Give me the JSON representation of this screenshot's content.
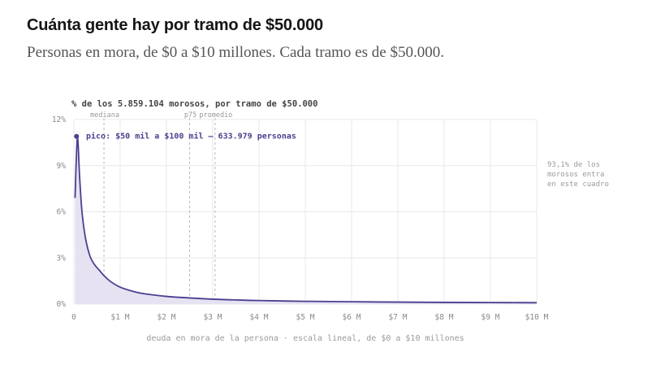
{
  "header": {
    "title": "Cuánta gente hay por tramo de $50.000",
    "subtitle": "Personas en mora, de $0 a $10 millones. Cada tramo es de $50.000."
  },
  "chart_data": {
    "type": "area",
    "title": "% de los 5.859.104 morosos, por tramo de $50.000",
    "xlabel": "deuda en mora de la persona · escala lineal, de $0 a $10 millones",
    "ylabel": "",
    "xlim": [
      0,
      10
    ],
    "ylim": [
      0,
      12
    ],
    "x_ticks": [
      0,
      1,
      2,
      3,
      4,
      5,
      6,
      7,
      8,
      9,
      10
    ],
    "x_tick_labels": [
      "0",
      "$1 M",
      "$2 M",
      "$3 M",
      "$4 M",
      "$5 M",
      "$6 M",
      "$7 M",
      "$8 M",
      "$9 M",
      "$10 M"
    ],
    "y_ticks": [
      0,
      3,
      6,
      9,
      12
    ],
    "y_tick_labels": [
      "0%",
      "3%",
      "6%",
      "9%",
      "12%"
    ],
    "grid": true,
    "series": [
      {
        "x": [
          0.025,
          0.075,
          0.125,
          0.175,
          0.25,
          0.35,
          0.45,
          0.55,
          0.65,
          0.8,
          1.0,
          1.25,
          1.5,
          2.0,
          2.5,
          3.0,
          3.5,
          4.0,
          5.0,
          6.0,
          7.0,
          8.0,
          9.0,
          10.0
        ],
        "y": [
          6.9,
          10.8,
          8.2,
          6.0,
          4.3,
          3.1,
          2.55,
          2.2,
          1.85,
          1.45,
          1.1,
          0.85,
          0.68,
          0.5,
          0.4,
          0.32,
          0.27,
          0.23,
          0.18,
          0.15,
          0.13,
          0.11,
          0.1,
          0.09
        ]
      }
    ],
    "markers": [
      {
        "label": "mediana",
        "x": 0.65
      },
      {
        "label": "p75",
        "x": 2.5
      },
      {
        "label": "promedio",
        "x": 3.05
      }
    ],
    "peak": {
      "x": 0.075,
      "y": 10.8,
      "label": "pico: $50 mil a $100 mil — 633.979 personas"
    },
    "side_note": [
      "93,1% de los",
      "morosos entra",
      "en este cuadro"
    ],
    "colors": {
      "line": "#4b3f8f",
      "fill": "#e6e2f2",
      "grid": "#e8e8e8",
      "marker": "#b9b9b9",
      "text": "#8a8a8a",
      "title": "#444444"
    }
  }
}
